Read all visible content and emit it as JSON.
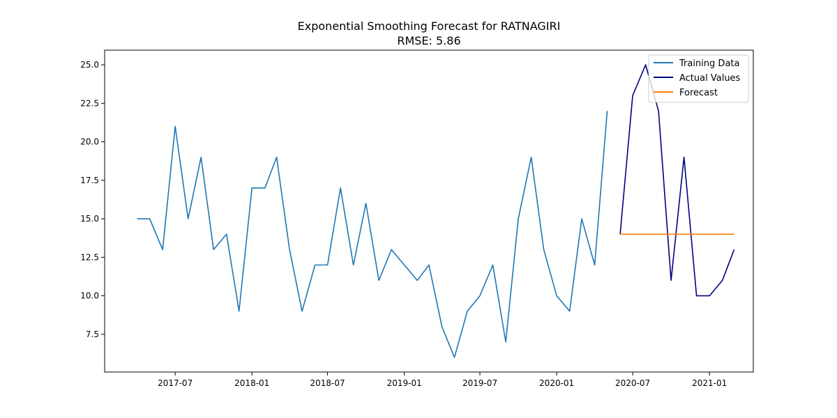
{
  "chart_data": {
    "type": "line",
    "title": "Exponential Smoothing Forecast for RATNAGIRI",
    "subtitle": "RMSE: 5.86",
    "xlabel": "",
    "ylabel": "",
    "grid": false,
    "legend_position": "top-right",
    "xlim": [
      "2017-01-13",
      "2021-04-16"
    ],
    "ylim": [
      5.05,
      25.95
    ],
    "x_ticks": [
      "2017-07",
      "2018-01",
      "2018-07",
      "2019-01",
      "2019-07",
      "2020-01",
      "2020-07",
      "2021-01"
    ],
    "y_ticks": [
      "7.5",
      "10.0",
      "12.5",
      "15.0",
      "17.5",
      "20.0",
      "22.5",
      "25.0"
    ],
    "series": [
      {
        "name": "Training Data",
        "color": "#1f77b4",
        "x": [
          "2017-04",
          "2017-05",
          "2017-06",
          "2017-07",
          "2017-08",
          "2017-09",
          "2017-10",
          "2017-11",
          "2017-12",
          "2018-01",
          "2018-02",
          "2018-03",
          "2018-04",
          "2018-05",
          "2018-06",
          "2018-07",
          "2018-08",
          "2018-09",
          "2018-10",
          "2018-11",
          "2018-12",
          "2019-01",
          "2019-02",
          "2019-03",
          "2019-04",
          "2019-05",
          "2019-06",
          "2019-07",
          "2019-08",
          "2019-09",
          "2019-10",
          "2019-11",
          "2019-12",
          "2020-01",
          "2020-02",
          "2020-03",
          "2020-04",
          "2020-05"
        ],
        "values": [
          15,
          15,
          13,
          21,
          15,
          19,
          13,
          14,
          9,
          17,
          17,
          19,
          13,
          9,
          12,
          12,
          17,
          12,
          16,
          11,
          13,
          12,
          11,
          12,
          8,
          6,
          9,
          10,
          12,
          7,
          15,
          19,
          13,
          10,
          9,
          15,
          12,
          22
        ]
      },
      {
        "name": "Actual Values",
        "color": "#000080",
        "x": [
          "2020-06",
          "2020-07",
          "2020-08",
          "2020-09",
          "2020-10",
          "2020-11",
          "2020-12",
          "2021-01",
          "2021-02",
          "2021-03"
        ],
        "values": [
          14,
          23,
          25,
          22,
          11,
          19,
          10,
          10,
          11,
          13
        ]
      },
      {
        "name": "Forecast",
        "color": "#ff7f0e",
        "x": [
          "2020-06",
          "2020-07",
          "2020-08",
          "2020-09",
          "2020-10",
          "2020-11",
          "2020-12",
          "2021-01",
          "2021-02",
          "2021-03"
        ],
        "values": [
          14,
          14,
          14,
          14,
          14,
          14,
          14,
          14,
          14,
          14
        ]
      }
    ]
  }
}
